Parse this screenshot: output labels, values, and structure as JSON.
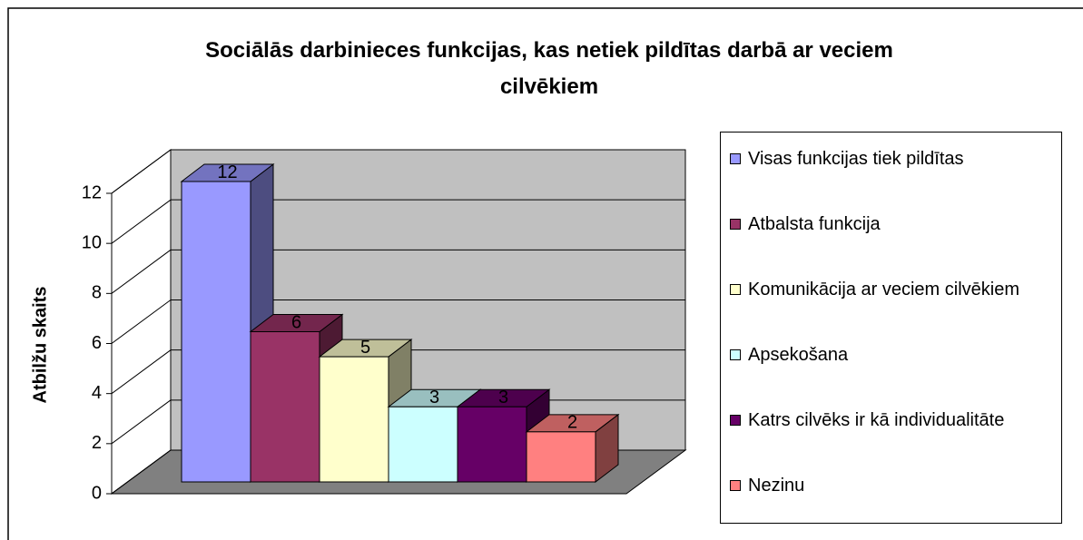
{
  "chart_data": {
    "type": "bar3d",
    "title": "Sociālās darbinieces funkcijas, kas netiek pildītas darbā ar veciem cilvēkiem",
    "ylabel": "Atbilžu skaits",
    "series": [
      {
        "name": "Visas funkcijas tiek pildītas",
        "color": "#9999ff",
        "values": [
          12
        ]
      },
      {
        "name": "Atbalsta funkcija",
        "color": "#993366",
        "values": [
          6
        ]
      },
      {
        "name": "Komunikācija ar veciem cilvēkiem",
        "color": "#ffffcc",
        "values": [
          5
        ]
      },
      {
        "name": "Apsekošana",
        "color": "#ccffff",
        "values": [
          3
        ]
      },
      {
        "name": "Katrs cilvēks ir kā individualitāte",
        "color": "#660066",
        "values": [
          3
        ]
      },
      {
        "name": "Nezinu",
        "color": "#ff8080",
        "values": [
          2
        ]
      }
    ],
    "ylim": [
      0,
      12
    ],
    "yticks": [
      0,
      2,
      4,
      6,
      8,
      10,
      12
    ],
    "grid": true,
    "legend": "right"
  }
}
